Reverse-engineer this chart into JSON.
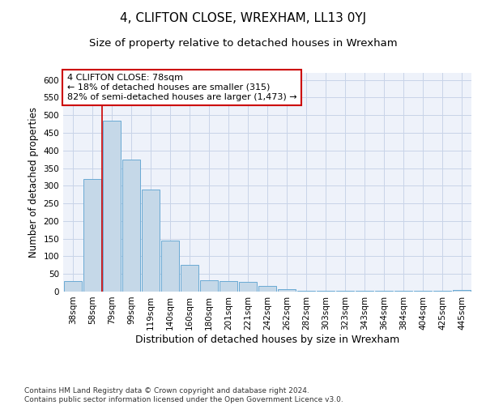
{
  "title": "4, CLIFTON CLOSE, WREXHAM, LL13 0YJ",
  "subtitle": "Size of property relative to detached houses in Wrexham",
  "xlabel": "Distribution of detached houses by size in Wrexham",
  "ylabel": "Number of detached properties",
  "footer_line1": "Contains HM Land Registry data © Crown copyright and database right 2024.",
  "footer_line2": "Contains public sector information licensed under the Open Government Licence v3.0.",
  "categories": [
    "38sqm",
    "58sqm",
    "79sqm",
    "99sqm",
    "119sqm",
    "140sqm",
    "160sqm",
    "180sqm",
    "201sqm",
    "221sqm",
    "242sqm",
    "262sqm",
    "282sqm",
    "303sqm",
    "323sqm",
    "343sqm",
    "364sqm",
    "384sqm",
    "404sqm",
    "425sqm",
    "445sqm"
  ],
  "values": [
    30,
    320,
    485,
    375,
    290,
    145,
    75,
    33,
    30,
    27,
    15,
    8,
    3,
    3,
    3,
    3,
    3,
    3,
    3,
    3,
    5
  ],
  "bar_color": "#c5d8e8",
  "bar_edge_color": "#6aaad4",
  "grid_color": "#c8d4e8",
  "background_color": "#eef2fa",
  "annotation_line1": "4 CLIFTON CLOSE: 78sqm",
  "annotation_line2": "← 18% of detached houses are smaller (315)",
  "annotation_line3": "82% of semi-detached houses are larger (1,473) →",
  "annotation_box_facecolor": "#ffffff",
  "annotation_box_edgecolor": "#cc0000",
  "vline_color": "#cc0000",
  "vline_x": 1.5,
  "ylim": [
    0,
    620
  ],
  "yticks": [
    0,
    50,
    100,
    150,
    200,
    250,
    300,
    350,
    400,
    450,
    500,
    550,
    600
  ],
  "title_fontsize": 11,
  "subtitle_fontsize": 9.5,
  "xlabel_fontsize": 9,
  "ylabel_fontsize": 8.5,
  "tick_fontsize": 7.5,
  "annotation_fontsize": 8,
  "footer_fontsize": 6.5
}
